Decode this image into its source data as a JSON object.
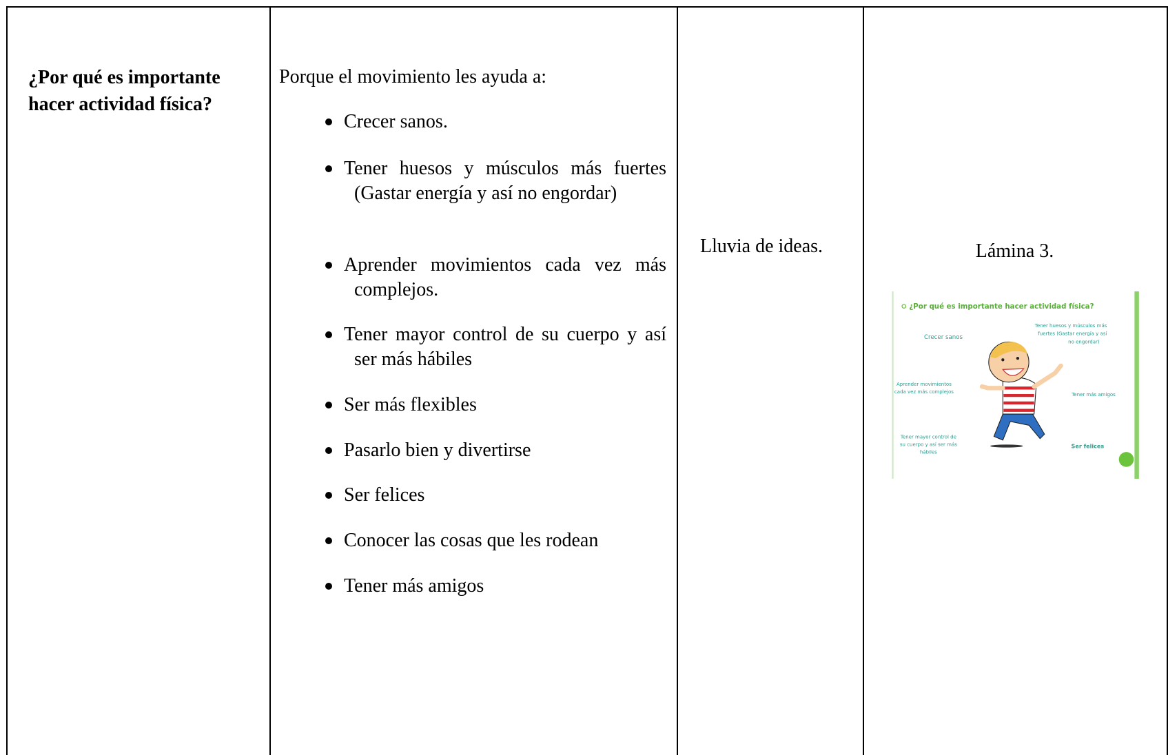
{
  "table": {
    "question": [
      "¿Por qué es importante",
      "hacer actividad física?"
    ],
    "answer": {
      "intro": "Porque el movimiento les ayuda a:",
      "items": [
        "Crecer sanos.",
        "Tener huesos y músculos más fuertes (Gastar energía y así no engordar)",
        "Aprender movimientos cada vez más complejos.",
        "Tener mayor control de su cuerpo y así ser más hábiles",
        "Ser más flexibles",
        "Pasarlo bien y divertirse",
        "Ser felices",
        "Conocer las cosas que les rodean",
        "Tener más amigos"
      ]
    },
    "strategy": "Lluvia de ideas.",
    "resource": "Lámina 3.",
    "slide": {
      "title": "¿Por qué es importante hacer actividad física?",
      "growing": "Crecer sanos",
      "bones": [
        "Tener huesos y músculos más",
        "fuertes (Gastar energía y así",
        "no engordar)"
      ],
      "learn": [
        "Aprender movimientos",
        "cada vez más complejos"
      ],
      "friends": "Tener más amigos",
      "control": [
        "Tener mayor control de",
        "su cuerpo y así ser más",
        "hábiles"
      ],
      "happy": "Ser felices"
    }
  }
}
